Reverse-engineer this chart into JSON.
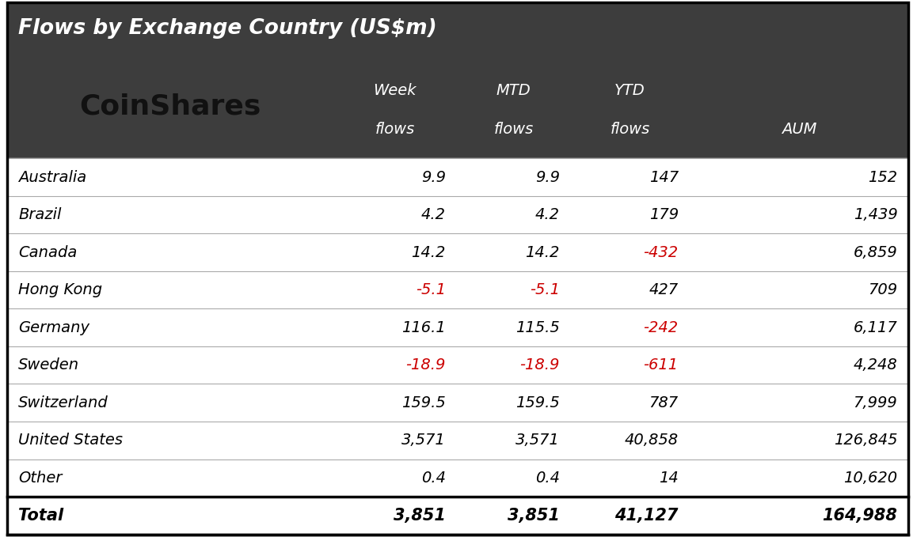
{
  "title": "Flows by Exchange Country (US$m)",
  "logo_text": "CoinShares",
  "header_bg": "#3d3d3d",
  "header_text_color": "#ffffff",
  "logo_text_color": "#111111",
  "body_bg": "#ffffff",
  "body_text_color": "#000000",
  "negative_color": "#cc0000",
  "col_header_line1": [
    "Week",
    "MTD",
    "YTD",
    ""
  ],
  "col_header_line2": [
    "flows",
    "flows",
    "flows",
    "AUM"
  ],
  "rows": [
    {
      "country": "Australia",
      "week": "9.9",
      "mtd": "9.9",
      "ytd": "147",
      "aum": "152",
      "week_neg": false,
      "mtd_neg": false,
      "ytd_neg": false,
      "aum_neg": false
    },
    {
      "country": "Brazil",
      "week": "4.2",
      "mtd": "4.2",
      "ytd": "179",
      "aum": "1,439",
      "week_neg": false,
      "mtd_neg": false,
      "ytd_neg": false,
      "aum_neg": false
    },
    {
      "country": "Canada",
      "week": "14.2",
      "mtd": "14.2",
      "ytd": "-432",
      "aum": "6,859",
      "week_neg": false,
      "mtd_neg": false,
      "ytd_neg": true,
      "aum_neg": false
    },
    {
      "country": "Hong Kong",
      "week": "-5.1",
      "mtd": "-5.1",
      "ytd": "427",
      "aum": "709",
      "week_neg": true,
      "mtd_neg": true,
      "ytd_neg": false,
      "aum_neg": false
    },
    {
      "country": "Germany",
      "week": "116.1",
      "mtd": "115.5",
      "ytd": "-242",
      "aum": "6,117",
      "week_neg": false,
      "mtd_neg": false,
      "ytd_neg": true,
      "aum_neg": false
    },
    {
      "country": "Sweden",
      "week": "-18.9",
      "mtd": "-18.9",
      "ytd": "-611",
      "aum": "4,248",
      "week_neg": true,
      "mtd_neg": true,
      "ytd_neg": true,
      "aum_neg": false
    },
    {
      "country": "Switzerland",
      "week": "159.5",
      "mtd": "159.5",
      "ytd": "787",
      "aum": "7,999",
      "week_neg": false,
      "mtd_neg": false,
      "ytd_neg": false,
      "aum_neg": false
    },
    {
      "country": "United States",
      "week": "3,571",
      "mtd": "3,571",
      "ytd": "40,858",
      "aum": "126,845",
      "week_neg": false,
      "mtd_neg": false,
      "ytd_neg": false,
      "aum_neg": false
    },
    {
      "country": "Other",
      "week": "0.4",
      "mtd": "0.4",
      "ytd": "14",
      "aum": "10,620",
      "week_neg": false,
      "mtd_neg": false,
      "ytd_neg": false,
      "aum_neg": false
    }
  ],
  "total": {
    "country": "Total",
    "week": "3,851",
    "mtd": "3,851",
    "ytd": "41,127",
    "aum": "164,988",
    "week_neg": false,
    "mtd_neg": false,
    "ytd_neg": false,
    "aum_neg": false
  },
  "figsize": [
    11.53,
    6.79
  ],
  "dpi": 100
}
